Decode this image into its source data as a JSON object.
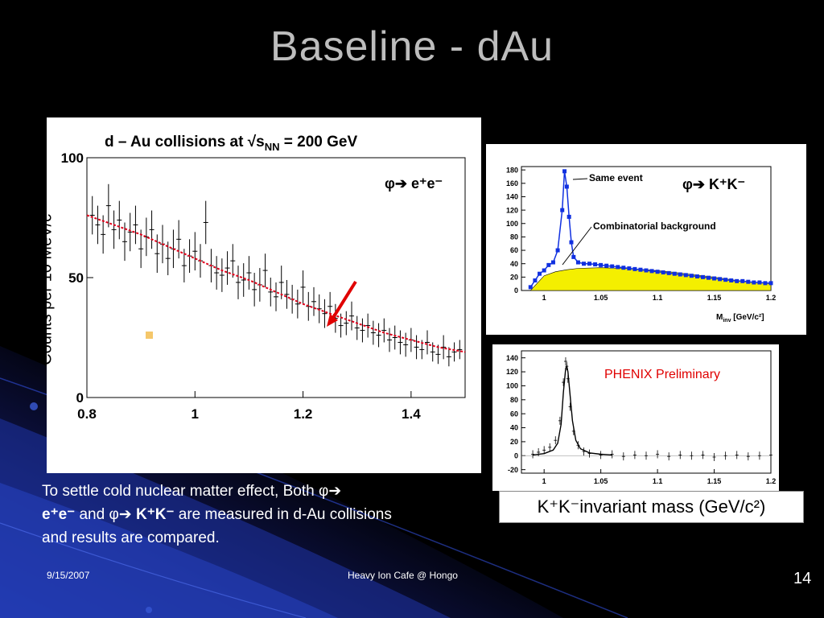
{
  "slide": {
    "title": "Baseline - dAu",
    "date": "9/15/2007",
    "footer_center": "Heavy Ion Cafe @ Hongo",
    "page_number": "14"
  },
  "colors": {
    "background": "#000000",
    "title": "#bdbdbd",
    "fit_curve": "#e0001a",
    "arrow": "#e00000",
    "same_event": "#1030e0",
    "background_fill": "#f4ef00",
    "preliminary": "#e00000"
  },
  "body_text": {
    "line1_pre": "To settle cold nuclear matter effect, Both ",
    "phi": "φ",
    "arrow": "➔",
    "ee": "e⁺e⁻",
    "and": " and ",
    "kk": "K⁺K⁻",
    "line2_post": " are measured in d-Au collisions and results are compared."
  },
  "chart_data": [
    {
      "type": "scatter",
      "title": "d – Au collisions at √s",
      "title_sub": "NN",
      "title_tail": " = 200 GeV",
      "channel_label": "φ➔ e⁺e⁻",
      "ylabel": "Counts per 10 MeV/c²",
      "xlim": [
        0.8,
        1.5
      ],
      "ylim": [
        0,
        100
      ],
      "x_ticks": [
        "0.8",
        "1",
        "1.2",
        "1.4"
      ],
      "x_tick_values": [
        0.8,
        1.0,
        1.2,
        1.4
      ],
      "y_ticks": [
        "0",
        "50",
        "100"
      ],
      "y_tick_values": [
        0,
        50,
        100
      ],
      "series": [
        {
          "role": "data",
          "x": [
            0.81,
            0.82,
            0.83,
            0.84,
            0.85,
            0.86,
            0.87,
            0.88,
            0.89,
            0.9,
            0.91,
            0.92,
            0.93,
            0.94,
            0.95,
            0.96,
            0.97,
            0.98,
            0.99,
            1.0,
            1.01,
            1.02,
            1.03,
            1.04,
            1.05,
            1.06,
            1.07,
            1.08,
            1.09,
            1.1,
            1.11,
            1.12,
            1.13,
            1.14,
            1.15,
            1.16,
            1.17,
            1.18,
            1.19,
            1.2,
            1.21,
            1.22,
            1.23,
            1.24,
            1.25,
            1.26,
            1.27,
            1.28,
            1.29,
            1.3,
            1.31,
            1.32,
            1.33,
            1.34,
            1.35,
            1.36,
            1.37,
            1.38,
            1.39,
            1.4,
            1.41,
            1.42,
            1.43,
            1.44,
            1.45,
            1.46,
            1.47,
            1.48,
            1.49
          ],
          "y": [
            76,
            72,
            68,
            80,
            70,
            74,
            65,
            69,
            72,
            62,
            67,
            70,
            60,
            64,
            58,
            62,
            66,
            55,
            59,
            61,
            57,
            73,
            55,
            52,
            51,
            54,
            57,
            48,
            49,
            52,
            45,
            47,
            53,
            44,
            42,
            48,
            43,
            41,
            39,
            46,
            38,
            40,
            37,
            35,
            38,
            33,
            30,
            31,
            34,
            29,
            28,
            30,
            27,
            26,
            28,
            24,
            25,
            23,
            22,
            24,
            21,
            20,
            23,
            19,
            18,
            21,
            17,
            19,
            20
          ],
          "err": [
            8,
            8,
            8,
            9,
            8,
            8,
            8,
            8,
            8,
            8,
            8,
            8,
            8,
            8,
            7,
            8,
            8,
            7,
            7,
            8,
            7,
            9,
            7,
            7,
            7,
            7,
            7,
            7,
            7,
            7,
            7,
            7,
            7,
            6,
            6,
            7,
            6,
            6,
            6,
            7,
            6,
            6,
            6,
            6,
            6,
            6,
            5,
            5,
            6,
            5,
            5,
            5,
            5,
            5,
            5,
            5,
            5,
            5,
            5,
            5,
            5,
            4,
            5,
            4,
            4,
            5,
            4,
            4,
            4
          ]
        },
        {
          "role": "fit",
          "x": [
            0.8,
            0.85,
            0.9,
            0.95,
            1.0,
            1.05,
            1.1,
            1.15,
            1.2,
            1.25,
            1.3,
            1.35,
            1.4,
            1.45,
            1.5
          ],
          "y": [
            76,
            72,
            68,
            63,
            58,
            53,
            49,
            44,
            39,
            35,
            31,
            27,
            24,
            21,
            19
          ]
        }
      ]
    },
    {
      "type": "scatter",
      "channel_label": "φ➔ K⁺K⁻",
      "xlabel": "M",
      "xlabel_sub": "inv",
      "xlabel_tail": " [GeV/c²]",
      "xlim": [
        0.98,
        1.2
      ],
      "ylim": [
        0,
        185
      ],
      "x_ticks": [
        "1",
        "1.05",
        "1.1",
        "1.15",
        "1.2"
      ],
      "x_tick_values": [
        1.0,
        1.05,
        1.1,
        1.15,
        1.2
      ],
      "y_ticks": [
        "0",
        "20",
        "40",
        "60",
        "80",
        "100",
        "120",
        "140",
        "160",
        "180"
      ],
      "y_tick_values": [
        0,
        20,
        40,
        60,
        80,
        100,
        120,
        140,
        160,
        180
      ],
      "annotations": [
        "Same event",
        "Combinatorial background"
      ],
      "series": [
        {
          "name": "Same event",
          "x": [
            0.988,
            0.992,
            0.996,
            1.0,
            1.004,
            1.008,
            1.012,
            1.016,
            1.018,
            1.02,
            1.022,
            1.024,
            1.026,
            1.03,
            1.035,
            1.04,
            1.045,
            1.05,
            1.055,
            1.06,
            1.065,
            1.07,
            1.075,
            1.08,
            1.085,
            1.09,
            1.095,
            1.1,
            1.105,
            1.11,
            1.115,
            1.12,
            1.125,
            1.13,
            1.135,
            1.14,
            1.145,
            1.15,
            1.155,
            1.16,
            1.165,
            1.17,
            1.175,
            1.18,
            1.185,
            1.19,
            1.195,
            1.2
          ],
          "y": [
            5,
            15,
            25,
            30,
            38,
            42,
            60,
            120,
            178,
            155,
            110,
            72,
            50,
            42,
            40,
            40,
            39,
            38,
            37,
            36,
            35,
            34,
            33,
            32,
            31,
            30,
            29,
            28,
            27,
            26,
            25,
            24,
            23,
            22,
            21,
            20,
            19,
            18,
            17,
            16,
            15,
            14,
            14,
            13,
            12,
            12,
            11,
            11
          ]
        },
        {
          "name": "Combinatorial background",
          "x": [
            0.988,
            1.0,
            1.01,
            1.02,
            1.03,
            1.05,
            1.07,
            1.09,
            1.11,
            1.13,
            1.15,
            1.17,
            1.2
          ],
          "y": [
            0,
            22,
            28,
            31,
            33,
            34,
            33,
            31,
            28,
            24,
            20,
            15,
            10
          ]
        }
      ]
    },
    {
      "type": "scatter",
      "annotation": "PHENIX Preliminary",
      "xlim": [
        0.98,
        1.2
      ],
      "ylim": [
        -25,
        150
      ],
      "x_ticks": [
        "1",
        "1.05",
        "1.1",
        "1.15",
        "1.2"
      ],
      "x_tick_values": [
        1.0,
        1.05,
        1.1,
        1.15,
        1.2
      ],
      "y_ticks": [
        "-20",
        "0",
        "20",
        "40",
        "60",
        "80",
        "100",
        "120",
        "140"
      ],
      "y_tick_values": [
        -20,
        0,
        20,
        40,
        60,
        80,
        100,
        120,
        140
      ],
      "series": [
        {
          "role": "subtracted",
          "x": [
            0.99,
            0.995,
            1.0,
            1.005,
            1.01,
            1.014,
            1.017,
            1.019,
            1.02,
            1.021,
            1.023,
            1.026,
            1.03,
            1.035,
            1.04,
            1.05,
            1.06,
            1.07,
            1.08,
            1.09,
            1.1,
            1.11,
            1.12,
            1.13,
            1.14,
            1.15,
            1.16,
            1.17,
            1.18,
            1.19,
            1.2
          ],
          "y": [
            2,
            5,
            8,
            12,
            22,
            50,
            105,
            135,
            128,
            110,
            70,
            35,
            15,
            6,
            3,
            1,
            2,
            -1,
            1,
            0,
            2,
            -1,
            1,
            0,
            1,
            -2,
            0,
            1,
            -1,
            0,
            1
          ]
        },
        {
          "role": "fit",
          "x": [
            0.99,
            1.0,
            1.008,
            1.012,
            1.015,
            1.017,
            1.019,
            1.02,
            1.021,
            1.023,
            1.025,
            1.028,
            1.032,
            1.04,
            1.05,
            1.06
          ],
          "y": [
            1,
            3,
            8,
            18,
            45,
            90,
            125,
            128,
            120,
            85,
            50,
            22,
            10,
            4,
            2,
            1
          ]
        }
      ]
    }
  ],
  "right_caption": {
    "kk": "K⁺K⁻",
    "rest": " invariant mass (GeV/c²)"
  }
}
